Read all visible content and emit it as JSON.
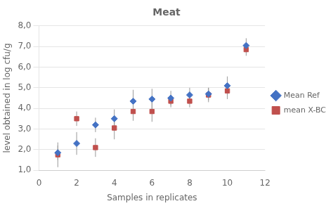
{
  "chart_data": {
    "type": "scatter",
    "title": "Meat",
    "xlabel": "Samples in replicates",
    "ylabel": "level obtained in log cfu/g",
    "x": [
      1,
      2,
      3,
      4,
      5,
      6,
      7,
      8,
      9,
      10,
      11
    ],
    "series": [
      {
        "name": "Mean Ref",
        "color": "#4472C4",
        "marker": "diamond",
        "values": [
          1.85,
          2.3,
          3.2,
          3.5,
          4.35,
          4.45,
          4.5,
          4.65,
          4.7,
          5.1,
          7.05
        ],
        "yerr": [
          0.35,
          0.55,
          0.35,
          0.45,
          0.55,
          0.5,
          0.35,
          0.35,
          0.3,
          0.45,
          0.35
        ]
      },
      {
        "name": "mean X-BC",
        "color": "#C0504D",
        "marker": "square",
        "values": [
          1.75,
          3.5,
          2.1,
          3.05,
          3.85,
          3.85,
          4.35,
          4.35,
          4.65,
          4.85,
          6.85
        ],
        "yerr": [
          0.6,
          0.35,
          0.45,
          0.55,
          0.45,
          0.5,
          0.3,
          0.3,
          0.35,
          0.4,
          0.3
        ]
      }
    ],
    "xlim": [
      0,
      12
    ],
    "xticks": [
      0,
      2,
      4,
      6,
      8,
      10,
      12
    ],
    "ylim": [
      1.0,
      8.0
    ],
    "yticks": [
      {
        "value": 1.0,
        "label": "1,0"
      },
      {
        "value": 2.0,
        "label": "2,0"
      },
      {
        "value": 3.0,
        "label": "3,0"
      },
      {
        "value": 4.0,
        "label": "4,0"
      },
      {
        "value": 5.0,
        "label": "5,0"
      },
      {
        "value": 6.0,
        "label": "6,0"
      },
      {
        "value": 7.0,
        "label": "7,0"
      },
      {
        "value": 8.0,
        "label": "8,0"
      }
    ],
    "grid": "y",
    "legend": "right"
  }
}
